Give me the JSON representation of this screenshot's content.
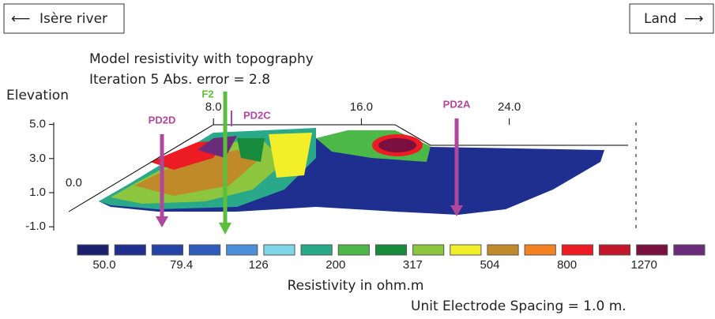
{
  "header": {
    "left_label": "Isère river",
    "right_label": "Land"
  },
  "title": [
    "Model resistivity with topography",
    "Iteration 5 Abs. error = 2.8"
  ],
  "y_axis": {
    "label": "Elevation",
    "ticks": [
      {
        "value": 5,
        "label": "5.0"
      },
      {
        "value": 3,
        "label": "3.0"
      },
      {
        "value": 1,
        "label": "1.0"
      },
      {
        "value": -1,
        "label": "-1.0"
      }
    ]
  },
  "x_axis": {
    "ticks": [
      {
        "value": 0,
        "label": "0.0"
      },
      {
        "value": 8,
        "label": "8.0"
      },
      {
        "value": 16,
        "label": "16.0"
      },
      {
        "value": 24,
        "label": "24.0"
      }
    ]
  },
  "markers": [
    "PD2D",
    "F2",
    "PD2C",
    "PD2A"
  ],
  "color_scale": {
    "colors": [
      "#1b1f70",
      "#1f2f90",
      "#2544a8",
      "#2f5cbc",
      "#4a8fd8",
      "#7fd6e8",
      "#2aa88a",
      "#4cb848",
      "#178a3c",
      "#8cc63f",
      "#f2ee2a",
      "#c08a2a",
      "#f58220",
      "#ed1c24",
      "#c4162a",
      "#7a1040",
      "#6a2c7a"
    ],
    "labels": [
      "50.0",
      "79.4",
      "126",
      "200",
      "317",
      "504",
      "800",
      "1270"
    ],
    "title": "Resistivity in ohm.m"
  },
  "note": "Unit Electrode Spacing = 1.0 m."
}
